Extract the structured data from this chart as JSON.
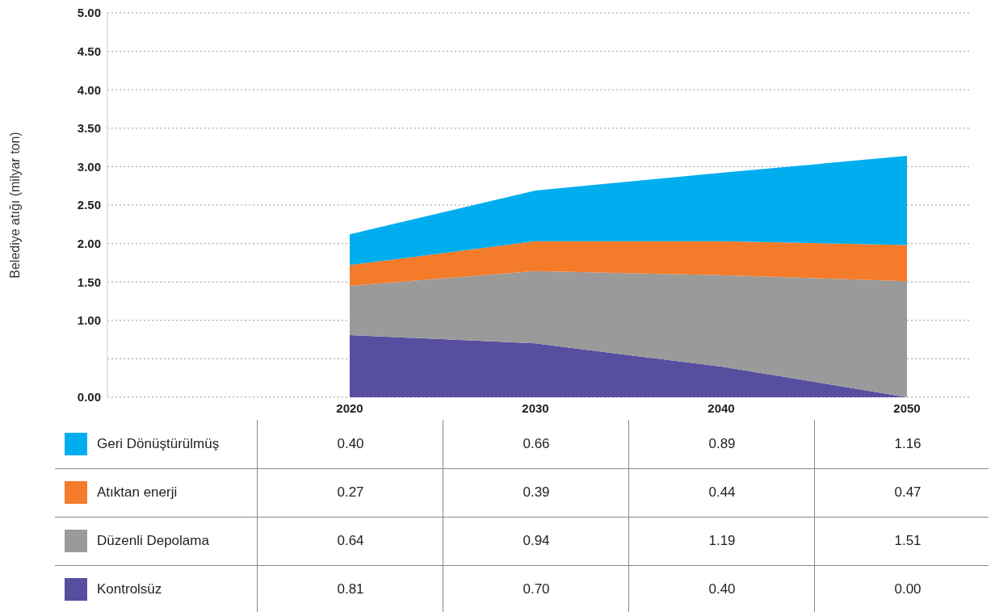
{
  "chart_data": {
    "type": "area",
    "stacked": true,
    "ylabel": "Belediye atığı (milyar ton)",
    "categories": [
      "2020",
      "2030",
      "2040",
      "2050"
    ],
    "ylim": [
      0,
      5
    ],
    "yticks": [
      {
        "value": 0,
        "label": "0.00"
      },
      {
        "value": 0.5,
        "label": null
      },
      {
        "value": 1,
        "label": "1.00"
      },
      {
        "value": 1.5,
        "label": "1.50"
      },
      {
        "value": 2,
        "label": "2.00"
      },
      {
        "value": 2.5,
        "label": "2.50"
      },
      {
        "value": 3,
        "label": "3.00"
      },
      {
        "value": 3.5,
        "label": "3.50"
      },
      {
        "value": 4,
        "label": "4.00"
      },
      {
        "value": 4.5,
        "label": "4.50"
      },
      {
        "value": 5,
        "label": "5.00"
      }
    ],
    "grid": "y",
    "legend": "bottom",
    "series": [
      {
        "name": "Kontrolsüz",
        "color": "#574ea0",
        "values": [
          0.81,
          0.7,
          0.4,
          0.0
        ],
        "value_labels": [
          "0.81",
          "0.70",
          "0.40",
          "0.00"
        ]
      },
      {
        "name": "Düzenli Depolama",
        "color": "#9a9a9a",
        "values": [
          0.64,
          0.94,
          1.19,
          1.51
        ],
        "value_labels": [
          "0.64",
          "0.94",
          "1.19",
          "1.51"
        ]
      },
      {
        "name": "Atıktan enerji",
        "color": "#f47b2a",
        "values": [
          0.27,
          0.39,
          0.44,
          0.47
        ],
        "value_labels": [
          "0.27",
          "0.39",
          "0.44",
          "0.47"
        ]
      },
      {
        "name": "Geri Dönüştürülmüş",
        "color": "#00aeef",
        "values": [
          0.4,
          0.66,
          0.89,
          1.16
        ],
        "value_labels": [
          "0.40",
          "0.66",
          "0.89",
          "1.16"
        ]
      }
    ]
  }
}
